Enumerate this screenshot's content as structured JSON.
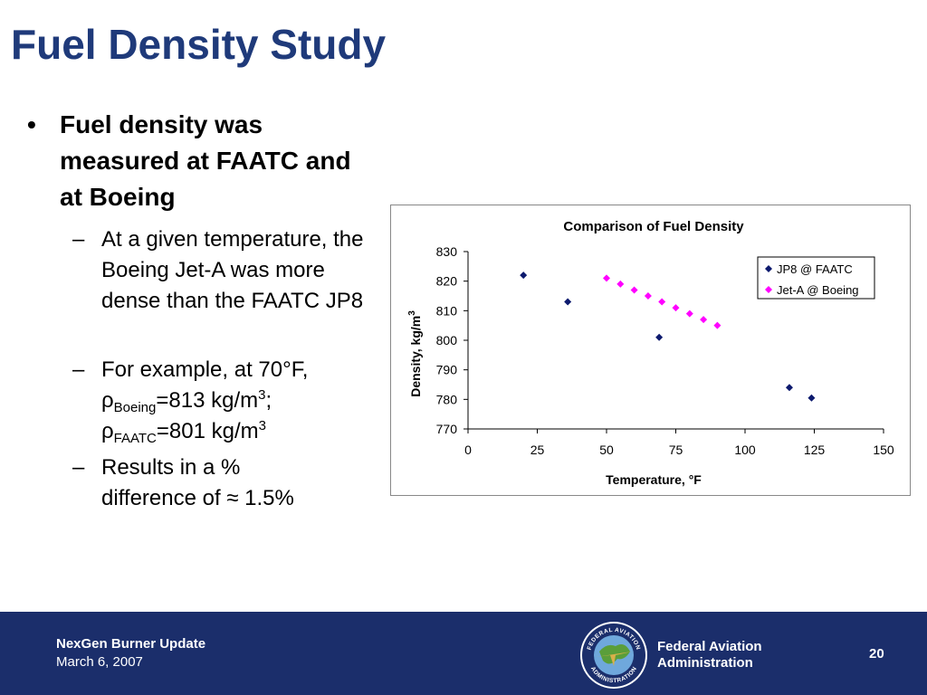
{
  "slide": {
    "title": "Fuel Density Study"
  },
  "bullets": {
    "main": "Fuel density was measured at FAATC and at Boeing",
    "sub1": "At a given temperature, the Boeing Jet-A was more dense than the FAATC JP8",
    "sub2_intro": "For example, at 70°F,",
    "sub2_rho": "ρ",
    "sub2_boeing_sub": "Boeing",
    "sub2_boeing_val": "=813 kg/m",
    "sub2_exp": "3",
    "sub2_semicolon": ";",
    "sub2_faatc_sub": "FAATC",
    "sub2_faatc_val": "=801 kg/m",
    "sub3": "Results in a % difference of ≈ 1.5%"
  },
  "chart_data": {
    "type": "scatter",
    "title": "Comparison of Fuel Density",
    "xlabel": "Temperature,  °F",
    "ylabel": "Density, kg/m",
    "ylabel_sup": "3",
    "xlim": [
      0,
      150
    ],
    "ylim": [
      770,
      830
    ],
    "xticks": [
      0,
      25,
      50,
      75,
      100,
      125,
      150
    ],
    "yticks": [
      770,
      780,
      790,
      800,
      810,
      820,
      830
    ],
    "grid": false,
    "legend_position": "top-right",
    "series": [
      {
        "name": "JP8 @ FAATC",
        "color": "#0d1a6e",
        "marker": "diamond",
        "x": [
          20,
          36,
          69,
          116,
          124
        ],
        "y": [
          822,
          813,
          801,
          784,
          780.5
        ]
      },
      {
        "name": "Jet-A @ Boeing",
        "color": "#ff00ff",
        "marker": "diamond",
        "x": [
          50,
          55,
          60,
          65,
          70,
          75,
          80,
          85,
          90
        ],
        "y": [
          821,
          819,
          817,
          815,
          813,
          811,
          809,
          807,
          805
        ]
      }
    ]
  },
  "footer": {
    "project": "NexGen Burner Update",
    "date": "March 6, 2007",
    "agency_line1": "Federal Aviation",
    "agency_line2": "Administration",
    "page": "20",
    "logo_text_top": "FEDERAL AVIATION",
    "logo_text_bottom": "ADMINISTRATION"
  }
}
